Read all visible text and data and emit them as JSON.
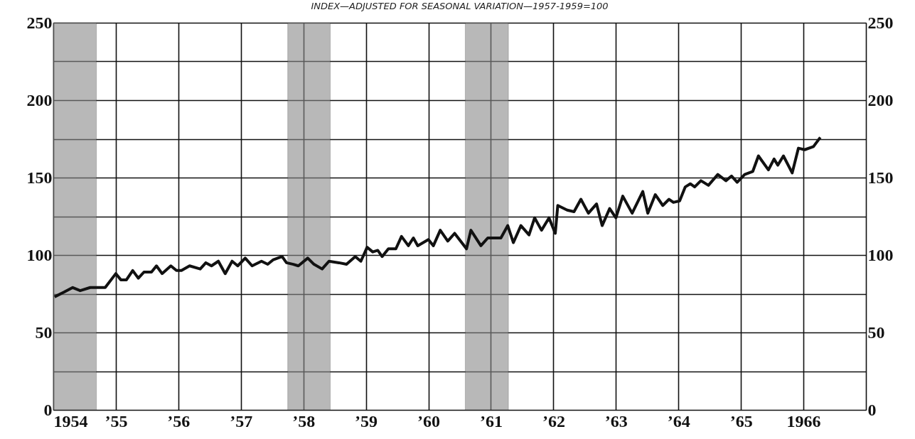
{
  "chart_data": {
    "type": "line",
    "title": "INDEX—ADJUSTED FOR SEASONAL VARIATION—1957-1959=100",
    "x": [
      1954.02,
      1954.17,
      1954.31,
      1954.43,
      1954.59,
      1954.83,
      1955.0,
      1955.08,
      1955.17,
      1955.27,
      1955.36,
      1955.45,
      1955.57,
      1955.65,
      1955.74,
      1955.88,
      1955.97,
      1956.05,
      1956.18,
      1956.35,
      1956.44,
      1956.53,
      1956.64,
      1956.75,
      1956.86,
      1956.95,
      1957.07,
      1957.18,
      1957.33,
      1957.43,
      1957.52,
      1957.66,
      1957.73,
      1957.84,
      1957.92,
      1958.07,
      1958.17,
      1958.3,
      1958.41,
      1958.57,
      1958.69,
      1958.83,
      1958.92,
      1959.02,
      1959.11,
      1959.19,
      1959.26,
      1959.36,
      1959.48,
      1959.57,
      1959.68,
      1959.76,
      1959.83,
      1960.0,
      1960.08,
      1960.19,
      1960.31,
      1960.42,
      1960.61,
      1960.68,
      1960.84,
      1960.95,
      1961.16,
      1961.27,
      1961.36,
      1961.48,
      1961.61,
      1961.7,
      1961.81,
      1961.93,
      1962.03,
      1962.07,
      1962.22,
      1962.33,
      1962.44,
      1962.56,
      1962.69,
      1962.78,
      1962.9,
      1963.0,
      1963.11,
      1963.26,
      1963.43,
      1963.51,
      1963.63,
      1963.75,
      1963.85,
      1963.92,
      1964.02,
      1964.11,
      1964.19,
      1964.26,
      1964.36,
      1964.48,
      1964.63,
      1964.76,
      1964.85,
      1964.94,
      1965.06,
      1965.19,
      1965.28,
      1965.44,
      1965.53,
      1965.59,
      1965.68,
      1965.82,
      1965.92,
      1966.02,
      1966.16,
      1966.27
    ],
    "series": [
      {
        "color": "#111111",
        "values": [
          73,
          76,
          79,
          77,
          79,
          79,
          88,
          84,
          84,
          90,
          85,
          89,
          89,
          93,
          88,
          93,
          90,
          90,
          93,
          91,
          95,
          93,
          96,
          88,
          96,
          93,
          98,
          93,
          96,
          94,
          97,
          99,
          95,
          94,
          93,
          98,
          94,
          91,
          96,
          95,
          94,
          99,
          96,
          105,
          102,
          103,
          99,
          104,
          104,
          112,
          106,
          111,
          106,
          110,
          106,
          116,
          109,
          114,
          104,
          116,
          106,
          111,
          111,
          119,
          108,
          119,
          113,
          124,
          116,
          124,
          114,
          132,
          129,
          128,
          136,
          127,
          133,
          119,
          130,
          124,
          138,
          127,
          141,
          127,
          139,
          132,
          136,
          134,
          135,
          144,
          146,
          144,
          148,
          145,
          152,
          148,
          151,
          147,
          152,
          154,
          164,
          155,
          162,
          158,
          164,
          153,
          169,
          168,
          170,
          176
        ]
      }
    ],
    "xlim": [
      1954,
      1967
    ],
    "xticks": [
      {
        "value": 1954,
        "label": "1954"
      },
      {
        "value": 1955,
        "label": "’55"
      },
      {
        "value": 1956,
        "label": "’56"
      },
      {
        "value": 1957,
        "label": "’57"
      },
      {
        "value": 1958,
        "label": "’58"
      },
      {
        "value": 1959,
        "label": "’59"
      },
      {
        "value": 1960,
        "label": "’60"
      },
      {
        "value": 1961,
        "label": "’61"
      },
      {
        "value": 1962,
        "label": "’62"
      },
      {
        "value": 1963,
        "label": "’63"
      },
      {
        "value": 1964,
        "label": "’64"
      },
      {
        "value": 1965,
        "label": "’65"
      },
      {
        "value": 1966,
        "label": "1966"
      },
      {
        "value": 1967,
        "label": null
      }
    ],
    "ylim": [
      0,
      250
    ],
    "yticks": [
      0,
      {
        "value": 25,
        "label": null
      },
      50,
      {
        "value": 75,
        "label": null
      },
      100,
      {
        "value": 125,
        "label": null
      },
      150,
      {
        "value": 175,
        "label": null
      },
      200,
      {
        "value": 225,
        "label": null
      },
      250
    ],
    "y2lim": [
      0,
      250
    ],
    "y2ticks": [
      0,
      50,
      100,
      150,
      200,
      250
    ],
    "bands": [
      {
        "axis": "x",
        "from": 1954.0,
        "to": 1954.69,
        "color": "#8a8a8a"
      },
      {
        "axis": "x",
        "from": 1957.75,
        "to": 1958.43,
        "color": "#8a8a8a"
      },
      {
        "axis": "x",
        "from": 1960.59,
        "to": 1961.28,
        "color": "#8a8a8a"
      }
    ],
    "grid": true,
    "line_style": "solid",
    "marker": "none"
  }
}
